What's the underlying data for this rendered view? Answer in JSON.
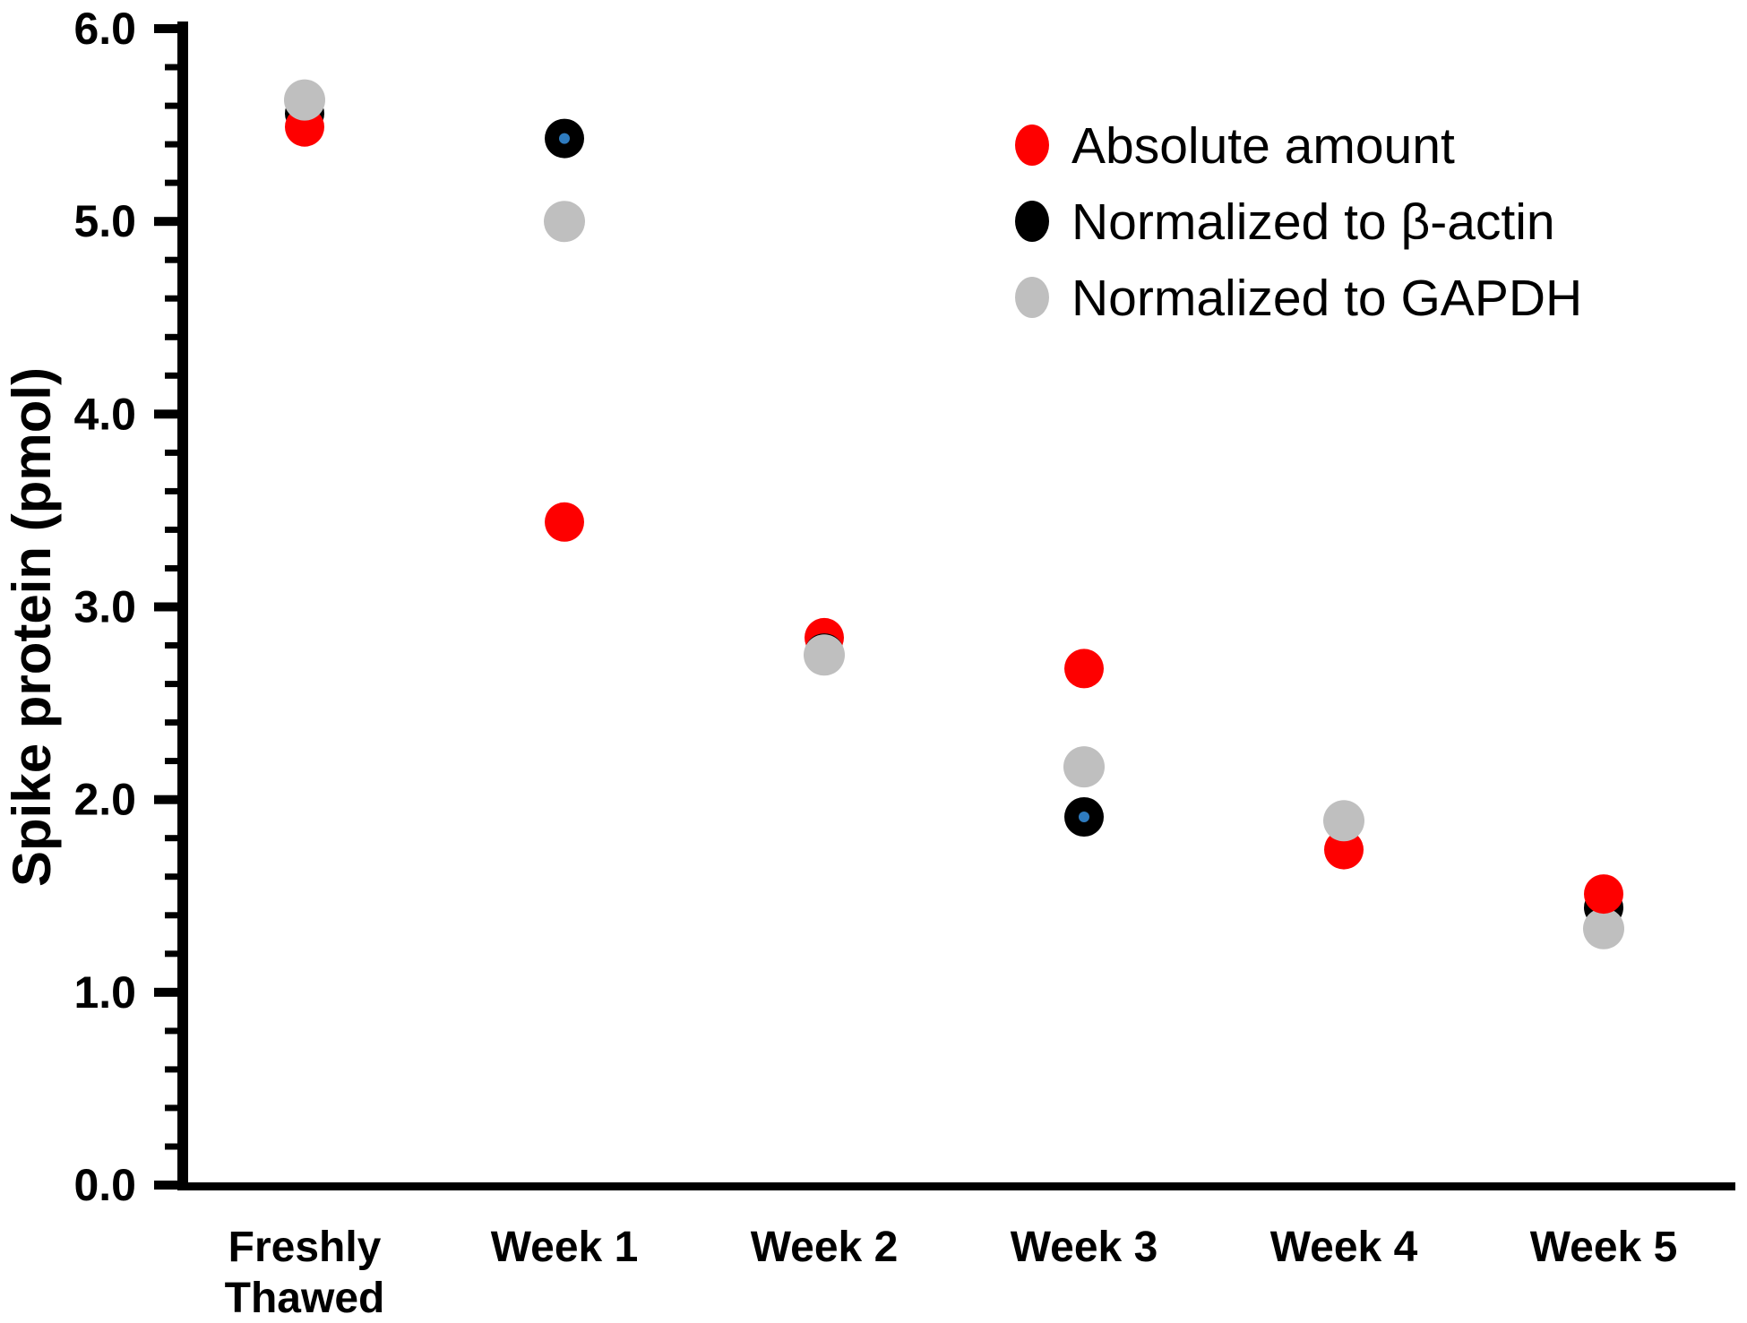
{
  "figure": {
    "background": "#ffffff"
  },
  "chart_data": {
    "type": "scatter",
    "title": "",
    "xlabel": "",
    "ylabel": "Spike protein (pmol)",
    "ylim": [
      0.0,
      6.0
    ],
    "y_major_step": 1.0,
    "y_minor_step": 0.2,
    "y_tick_labels": [
      "0.0",
      "1.0",
      "2.0",
      "3.0",
      "4.0",
      "5.0",
      "6.0"
    ],
    "categories": [
      "Freshly Thawed",
      "Week 1",
      "Week 2",
      "Week 3",
      "Week 4",
      "Week 5"
    ],
    "category_label_lines": [
      [
        "Freshly",
        "Thawed"
      ],
      [
        "Week 1"
      ],
      [
        "Week 2"
      ],
      [
        "Week 3"
      ],
      [
        "Week 4"
      ],
      [
        "Week 5"
      ]
    ],
    "grid": false,
    "legend_position": "upper right",
    "legend": {
      "entries": [
        {
          "label": "Absolute amount",
          "color": "#fe0000"
        },
        {
          "label": "Normalized to β-actin",
          "color": "#000000"
        },
        {
          "label": "Normalized to GAPDH",
          "color": "#bfbfbf"
        }
      ]
    },
    "series": [
      {
        "name": "Absolute amount",
        "color": "#fe0000",
        "marker": "circle",
        "radius": 22,
        "values": [
          5.49,
          3.44,
          2.84,
          2.68,
          1.74,
          1.51
        ]
      },
      {
        "name": "Normalized to β-actin",
        "color": "#000000",
        "marker": "circle",
        "radius": 22,
        "values": [
          5.56,
          5.43,
          2.76,
          1.91,
          1.89,
          1.44
        ],
        "center_dot_color": "#2e7bbf",
        "center_dot_categories": [
          1,
          3
        ]
      },
      {
        "name": "Normalized to GAPDH",
        "color": "#bfbfbf",
        "marker": "circle",
        "radius": 23,
        "values": [
          5.63,
          5.0,
          2.75,
          2.17,
          1.89,
          1.33
        ]
      }
    ],
    "overlap_draw_order": [
      [
        1,
        0,
        2
      ],
      [
        0,
        1,
        2
      ],
      [
        0,
        1,
        2
      ],
      [
        0,
        1,
        2
      ],
      [
        0,
        1,
        2
      ],
      [
        1,
        2,
        0
      ]
    ]
  }
}
